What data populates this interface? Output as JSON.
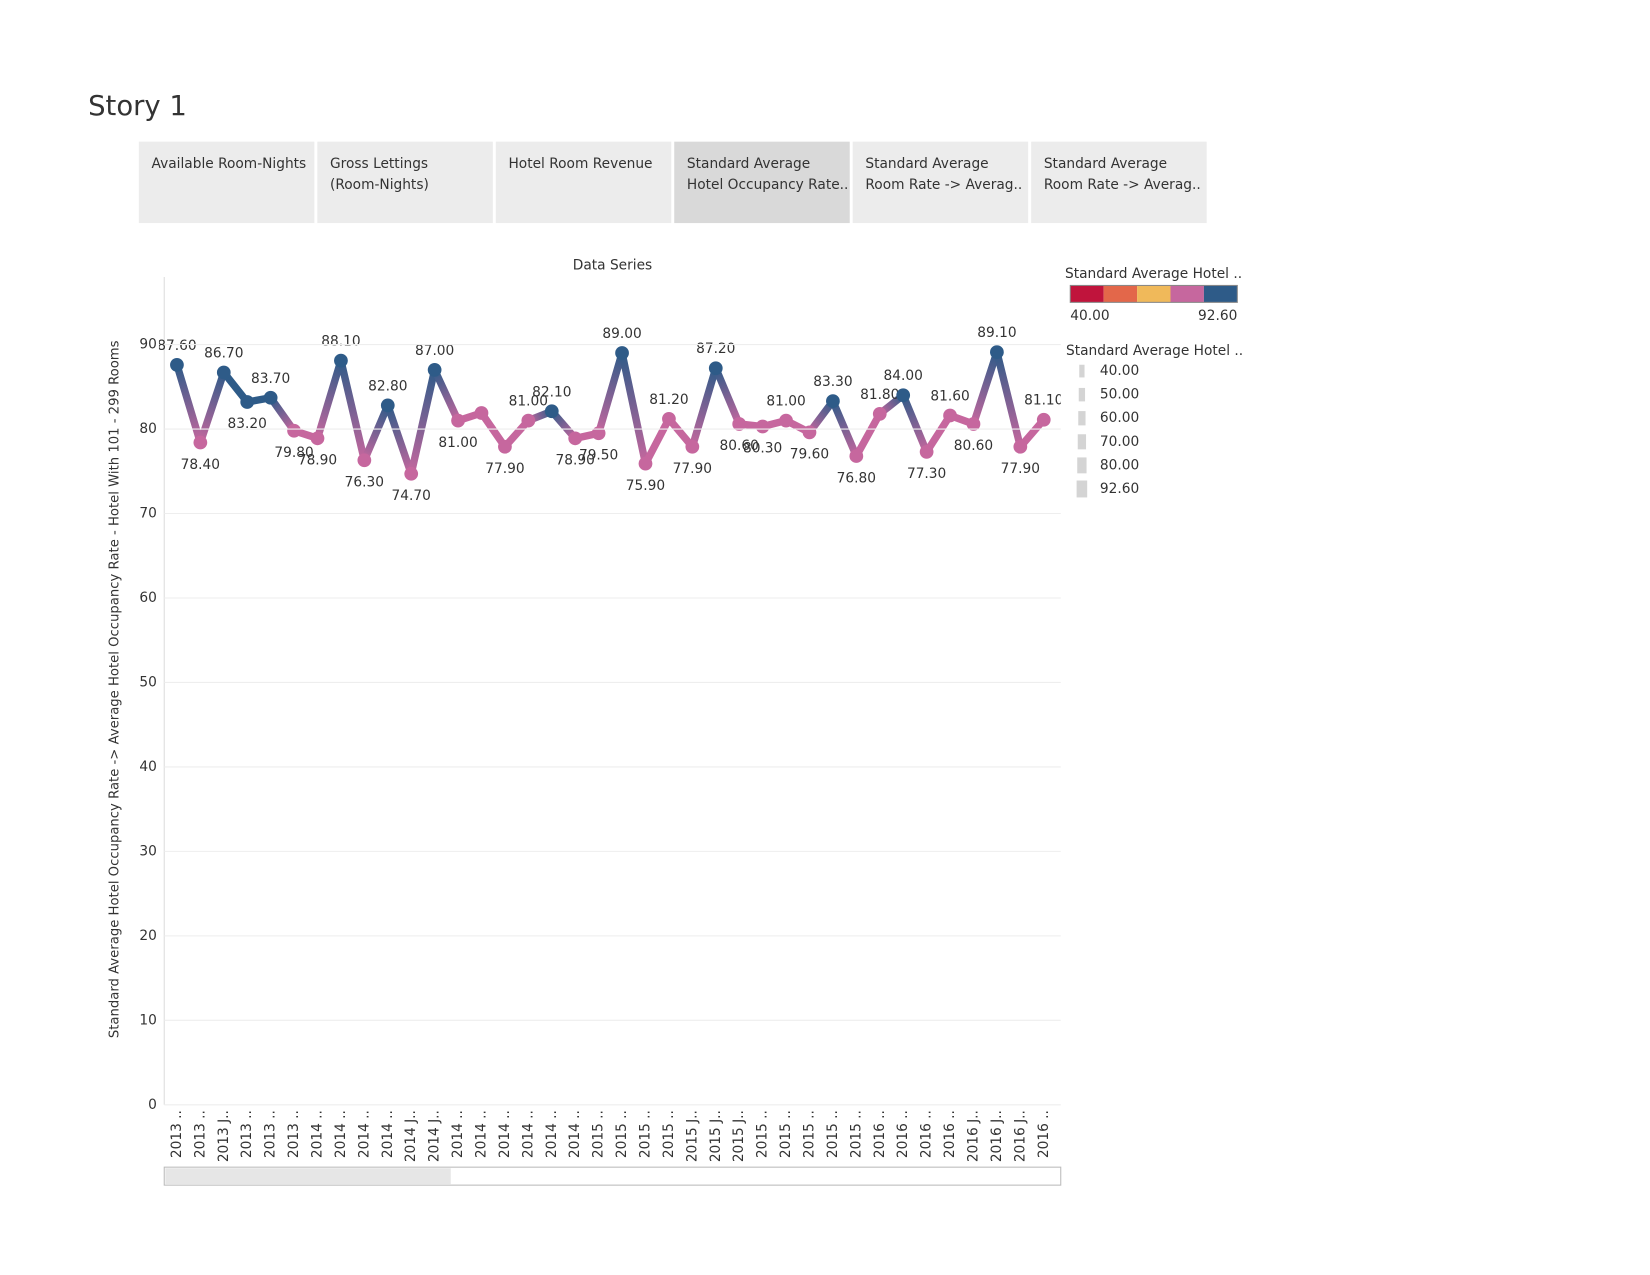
{
  "header": {
    "title": "Story 1"
  },
  "tabs": [
    {
      "lines": [
        "Available Room-Nights"
      ]
    },
    {
      "lines": [
        "Gross Lettings",
        "(Room-Nights)"
      ]
    },
    {
      "lines": [
        "Hotel Room Revenue"
      ]
    },
    {
      "lines": [
        "Standard Average",
        "Hotel Occupancy Rate.."
      ],
      "active": true
    },
    {
      "lines": [
        "Standard Average",
        "Room Rate -> Averag.."
      ]
    },
    {
      "lines": [
        "Standard Average",
        "Room Rate -> Averag.."
      ]
    }
  ],
  "chart_data": {
    "type": "line",
    "title": "Data Series",
    "y_label": "Standard Average Hotel Occupancy Rate -> Average Hotel Occupancy Rate - Hotel With 101 - 299 Rooms",
    "categories": [
      "2013 ..",
      "2013 ..",
      "2013 J..",
      "2013 ..",
      "2013 ..",
      "2013 ..",
      "2014 ..",
      "2014 ..",
      "2014 ..",
      "2014 ..",
      "2014 J..",
      "2014 J..",
      "2014 ..",
      "2014 ..",
      "2014 ..",
      "2014 ..",
      "2014 ..",
      "2014 ..",
      "2015 ..",
      "2015 ..",
      "2015 ..",
      "2015 ..",
      "2015 J..",
      "2015 J..",
      "2015 J..",
      "2015 ..",
      "2015 ..",
      "2015 ..",
      "2015 ..",
      "2015 ..",
      "2016 ..",
      "2016 ..",
      "2016 ..",
      "2016 ..",
      "2016 J..",
      "2016 J..",
      "2016 J..",
      "2016 .."
    ],
    "values": [
      87.6,
      78.4,
      86.7,
      83.2,
      83.7,
      79.8,
      78.9,
      88.1,
      76.3,
      82.8,
      74.7,
      87.0,
      81.0,
      81.9,
      77.9,
      81.0,
      82.1,
      78.9,
      79.5,
      89.0,
      75.9,
      81.2,
      77.9,
      87.2,
      80.6,
      80.3,
      81.0,
      79.6,
      83.3,
      76.8,
      81.8,
      84.0,
      77.3,
      81.6,
      80.6,
      89.1,
      77.9,
      81.1
    ],
    "value_labels": [
      "87.60",
      "78.40",
      "86.70",
      "83.20",
      "83.70",
      "79.80",
      "78.90",
      "88.10",
      "76.30",
      "82.80",
      "74.70",
      "87.00",
      "81.00",
      null,
      "77.90",
      "81.00",
      "82.10",
      "78.90",
      "79.50",
      "89.00",
      "75.90",
      "81.20",
      "77.90",
      "87.20",
      "80.60",
      "80.30",
      "81.00",
      "79.60",
      "83.30",
      "76.80",
      "81.80",
      "84.00",
      "77.30",
      "81.60",
      "80.60",
      "89.10",
      "77.90",
      "81.10"
    ],
    "ylim": [
      0,
      98
    ],
    "yticks": [
      0,
      10,
      20,
      30,
      40,
      50,
      60,
      70,
      80,
      90
    ],
    "grid": true,
    "color_legend": {
      "title": "Standard Average Hotel ..",
      "range": [
        40,
        92.6
      ],
      "range_labels": [
        "40.00",
        "92.60"
      ],
      "colors": [
        "#c0143c",
        "#e3674a",
        "#f0b95a",
        "#c6679e",
        "#2e5b88"
      ]
    },
    "size_legend": {
      "title": "Standard Average Hotel ..",
      "items": [
        {
          "value": 40,
          "label": "40.00"
        },
        {
          "value": 50,
          "label": "50.00"
        },
        {
          "value": 60,
          "label": "60.00"
        },
        {
          "value": 70,
          "label": "70.00"
        },
        {
          "value": 80,
          "label": "80.00"
        },
        {
          "value": 92.6,
          "label": "92.60"
        }
      ]
    }
  }
}
